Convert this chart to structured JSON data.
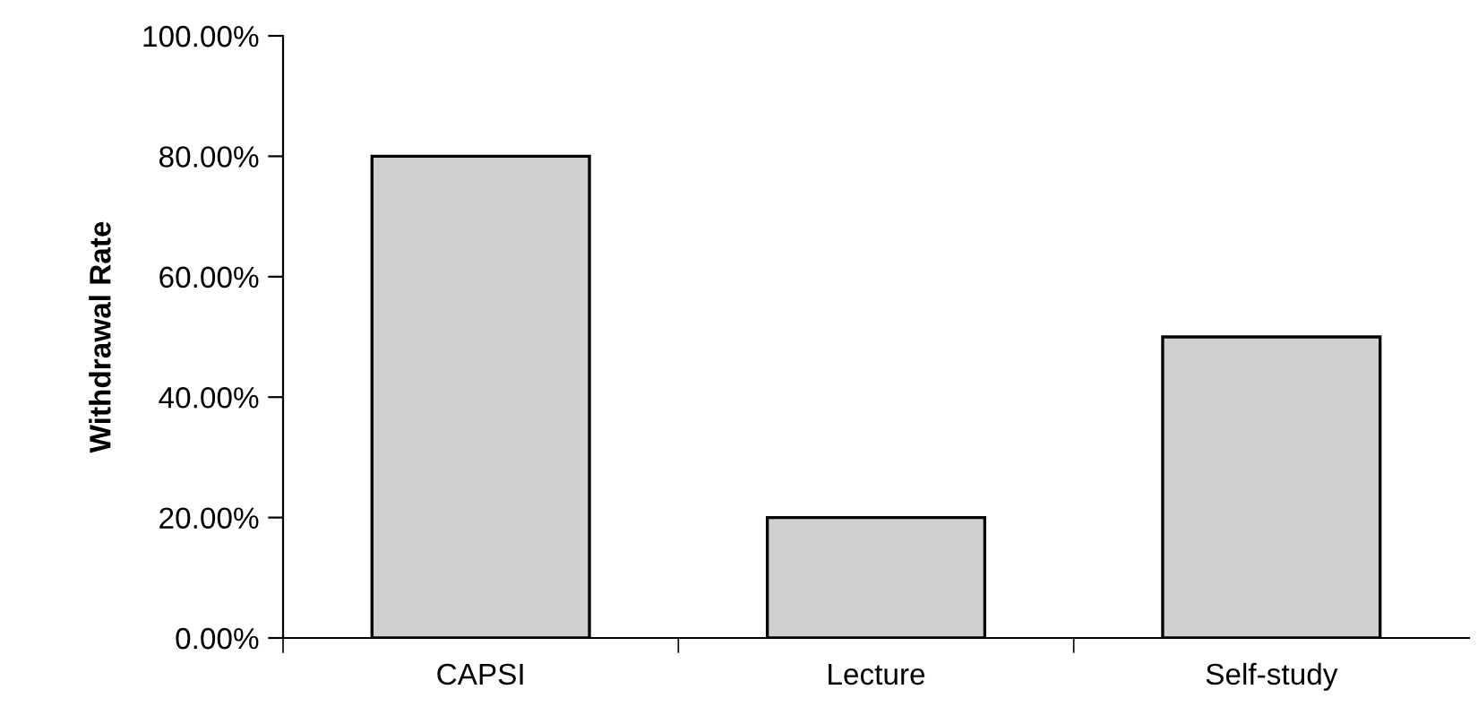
{
  "chart_data": {
    "type": "bar",
    "ylabel": "Withdrawal Rate",
    "categories": [
      "CAPSI",
      "Lecture",
      "Self-study"
    ],
    "values": [
      80,
      20,
      50
    ],
    "color": "#d0d0d0",
    "ylim": [
      0,
      100
    ],
    "yticks": [
      {
        "value": 0,
        "label": "0.00%"
      },
      {
        "value": 20,
        "label": "20.00%"
      },
      {
        "value": 40,
        "label": "40.00%"
      },
      {
        "value": 60,
        "label": "60.00%"
      },
      {
        "value": 80,
        "label": "80.00%"
      },
      {
        "value": 100,
        "label": "100.00%"
      }
    ],
    "grid": false,
    "legend": false
  }
}
